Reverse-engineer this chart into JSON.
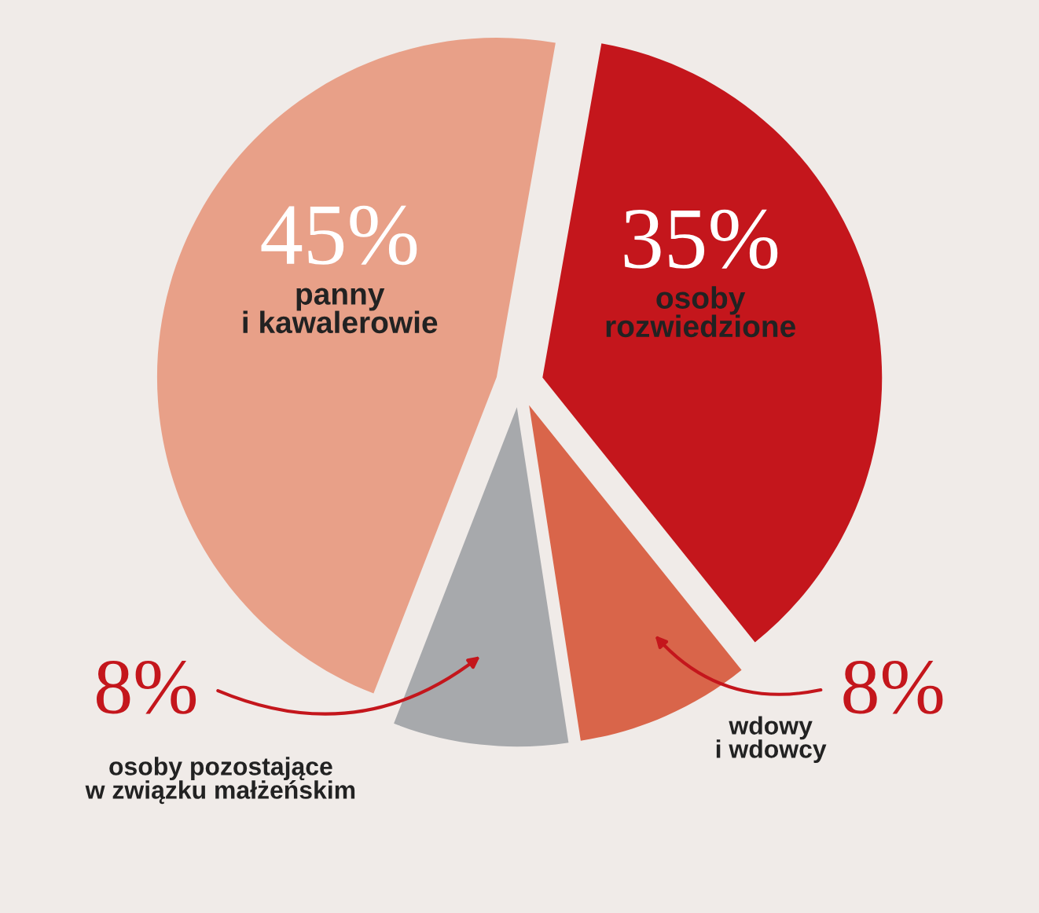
{
  "chart_data": {
    "type": "pie",
    "categories": [
      "osoby\nrozwiedzione",
      "wdowy\ni wdowcy",
      "osoby pozostające\nw związku małżeńskim",
      "panny\ni kawalerowie"
    ],
    "values": [
      35,
      8,
      8,
      45
    ],
    "value_labels": [
      "35%",
      "8%",
      "8%",
      "45%"
    ],
    "colors": [
      "#c4161c",
      "#d9654a",
      "#a7a9ac",
      "#e8a088"
    ]
  }
}
